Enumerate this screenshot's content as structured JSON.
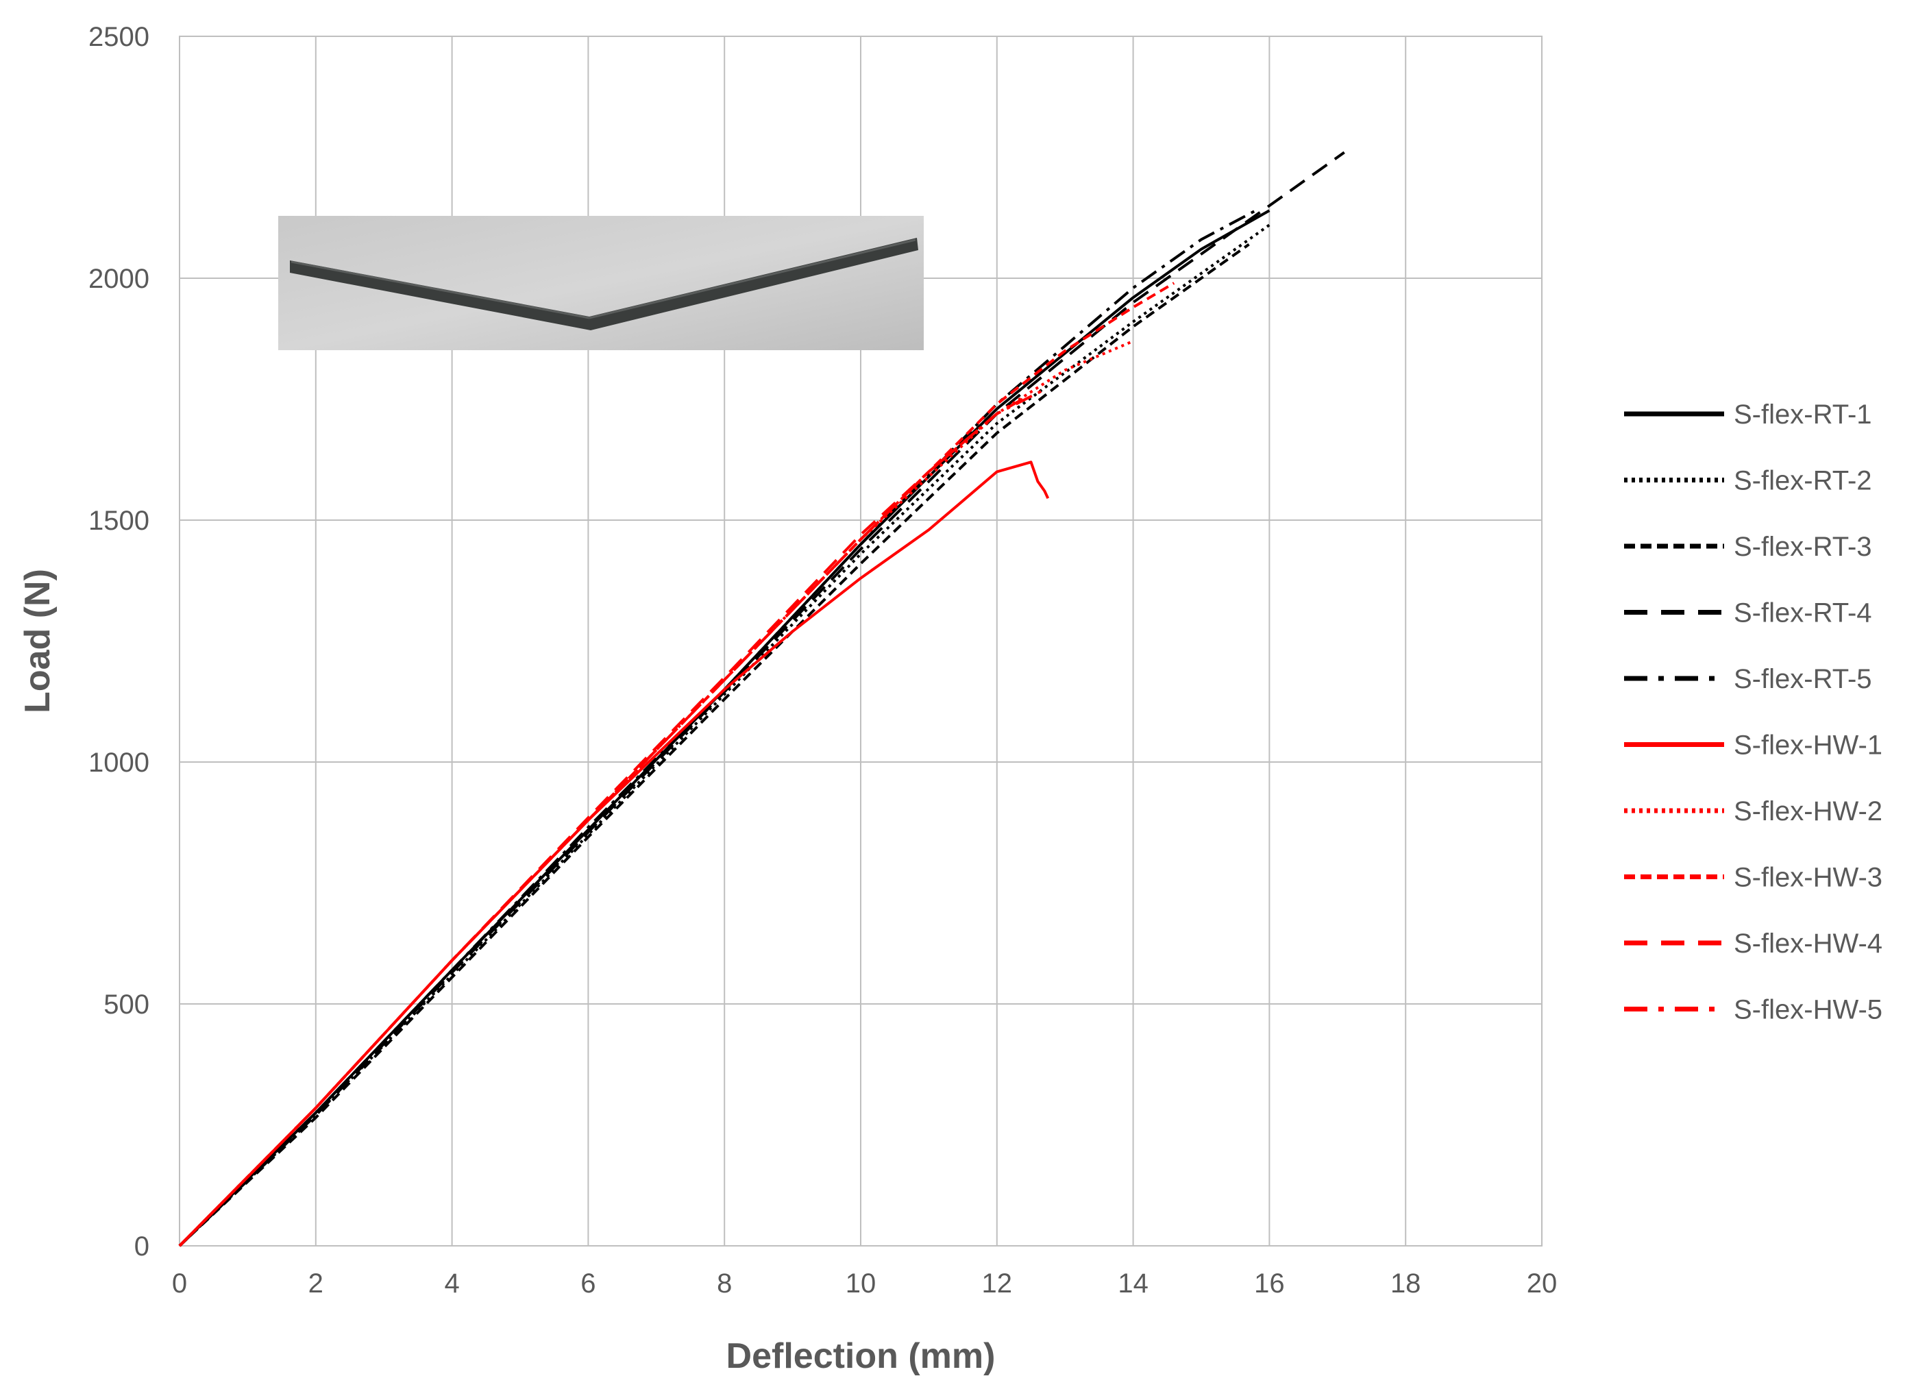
{
  "chart_data": {
    "type": "line",
    "title": "",
    "xlabel": "Deflection (mm)",
    "ylabel": "Load (N)",
    "xlim": [
      0,
      20
    ],
    "ylim": [
      0,
      2500
    ],
    "xticks": [
      "0",
      "2",
      "4",
      "6",
      "8",
      "10",
      "12",
      "14",
      "16",
      "18",
      "20"
    ],
    "yticks": [
      "0",
      "500",
      "1000",
      "1500",
      "2000",
      "2500"
    ],
    "grid": true,
    "legend_position": "right",
    "inset": "photo of bent specimen",
    "series": [
      {
        "name": "S-flex-RT-1",
        "color": "#000000",
        "dash": "solid",
        "points": [
          [
            0,
            0
          ],
          [
            2,
            275
          ],
          [
            4,
            570
          ],
          [
            6,
            860
          ],
          [
            8,
            1150
          ],
          [
            10,
            1450
          ],
          [
            12,
            1730
          ],
          [
            14,
            1960
          ],
          [
            15,
            2060
          ],
          [
            16,
            2140
          ]
        ]
      },
      {
        "name": "S-flex-RT-2",
        "color": "#000000",
        "dash": "dotted",
        "points": [
          [
            0,
            0
          ],
          [
            2,
            270
          ],
          [
            4,
            560
          ],
          [
            6,
            850
          ],
          [
            8,
            1140
          ],
          [
            10,
            1430
          ],
          [
            12,
            1700
          ],
          [
            14,
            1910
          ],
          [
            15,
            2010
          ],
          [
            16,
            2110
          ]
        ]
      },
      {
        "name": "S-flex-RT-3",
        "color": "#000000",
        "dash": "short-dash",
        "points": [
          [
            0,
            0
          ],
          [
            2,
            265
          ],
          [
            4,
            555
          ],
          [
            6,
            845
          ],
          [
            8,
            1130
          ],
          [
            10,
            1410
          ],
          [
            12,
            1680
          ],
          [
            14,
            1900
          ],
          [
            15,
            2000
          ],
          [
            15.7,
            2070
          ]
        ]
      },
      {
        "name": "S-flex-RT-4",
        "color": "#000000",
        "dash": "long-dash",
        "points": [
          [
            0,
            0
          ],
          [
            2,
            270
          ],
          [
            4,
            565
          ],
          [
            6,
            855
          ],
          [
            8,
            1145
          ],
          [
            10,
            1440
          ],
          [
            12,
            1720
          ],
          [
            14,
            1950
          ],
          [
            16,
            2150
          ],
          [
            17.1,
            2260
          ]
        ]
      },
      {
        "name": "S-flex-RT-5",
        "color": "#000000",
        "dash": "dash-dot",
        "points": [
          [
            0,
            0
          ],
          [
            2,
            275
          ],
          [
            4,
            570
          ],
          [
            6,
            865
          ],
          [
            8,
            1150
          ],
          [
            10,
            1450
          ],
          [
            12,
            1740
          ],
          [
            14,
            1980
          ],
          [
            15,
            2080
          ],
          [
            15.8,
            2140
          ]
        ]
      },
      {
        "name": "S-flex-HW-1",
        "color": "#ff0000",
        "dash": "solid",
        "points": [
          [
            0,
            0
          ],
          [
            2,
            285
          ],
          [
            4,
            590
          ],
          [
            6,
            880
          ],
          [
            8,
            1150
          ],
          [
            9,
            1270
          ],
          [
            10,
            1380
          ],
          [
            11,
            1480
          ],
          [
            11.5,
            1540
          ],
          [
            12,
            1600
          ],
          [
            12.5,
            1620
          ],
          [
            12.6,
            1580
          ],
          [
            12.7,
            1560
          ],
          [
            12.75,
            1545
          ]
        ]
      },
      {
        "name": "S-flex-HW-2",
        "color": "#ff0000",
        "dash": "dotted",
        "points": [
          [
            0,
            0
          ],
          [
            2,
            285
          ],
          [
            4,
            590
          ],
          [
            6,
            880
          ],
          [
            8,
            1170
          ],
          [
            10,
            1460
          ],
          [
            12,
            1720
          ],
          [
            13,
            1810
          ],
          [
            14,
            1870
          ]
        ]
      },
      {
        "name": "S-flex-HW-3",
        "color": "#ff0000",
        "dash": "short-dash",
        "points": [
          [
            0,
            0
          ],
          [
            2,
            285
          ],
          [
            4,
            590
          ],
          [
            6,
            880
          ],
          [
            8,
            1170
          ],
          [
            10,
            1460
          ],
          [
            12,
            1740
          ],
          [
            13,
            1850
          ],
          [
            14,
            1940
          ],
          [
            14.6,
            1990
          ]
        ]
      },
      {
        "name": "S-flex-HW-4",
        "color": "#ff0000",
        "dash": "long-dash",
        "points": [
          [
            0,
            0
          ],
          [
            2,
            285
          ],
          [
            4,
            590
          ],
          [
            6,
            885
          ],
          [
            8,
            1175
          ],
          [
            10,
            1470
          ],
          [
            11,
            1600
          ],
          [
            12,
            1720
          ],
          [
            12.5,
            1760
          ]
        ]
      },
      {
        "name": "S-flex-HW-5",
        "color": "#ff0000",
        "dash": "dash-dot",
        "points": [
          [
            0,
            0
          ],
          [
            2,
            285
          ],
          [
            4,
            590
          ],
          [
            6,
            880
          ],
          [
            8,
            1170
          ],
          [
            10,
            1460
          ],
          [
            11,
            1600
          ],
          [
            12,
            1720
          ],
          [
            12.7,
            1770
          ]
        ]
      }
    ]
  }
}
